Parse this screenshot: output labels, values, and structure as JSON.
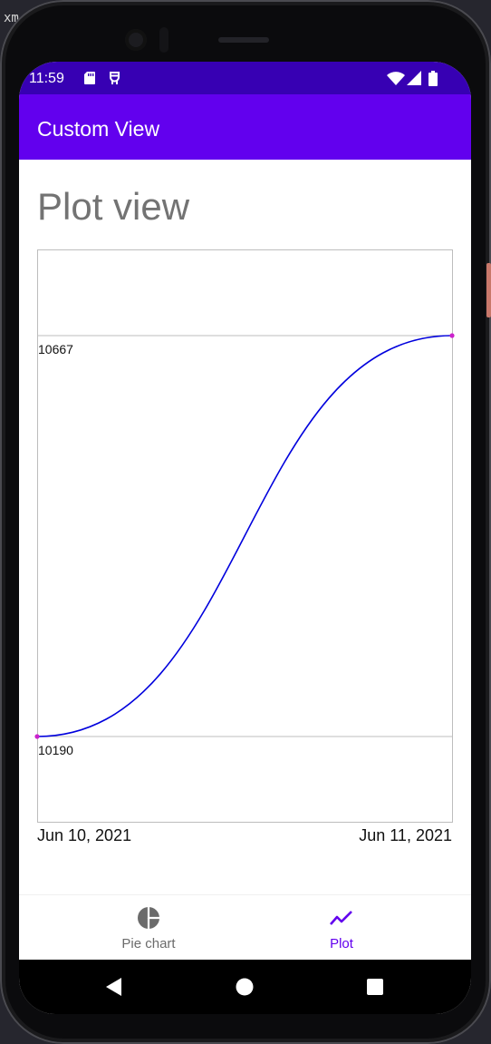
{
  "corner_label": "xm",
  "status_bar": {
    "time": "11:59",
    "icons": [
      "sd-card-icon",
      "debug-icon",
      "wifi-icon",
      "signal-icon",
      "battery-icon"
    ]
  },
  "app_bar": {
    "title": "Custom View"
  },
  "page": {
    "heading": "Plot view"
  },
  "chart_data": {
    "type": "line",
    "x": [
      "Jun 10, 2021",
      "Jun 11, 2021"
    ],
    "x_labels": [
      "Jun 10, 2021",
      "Jun 11, 2021"
    ],
    "series": [
      {
        "values": [
          10190,
          10667
        ]
      }
    ],
    "y_reference_lines": [
      10667,
      10190
    ],
    "y_labels": [
      "10667",
      "10190"
    ],
    "interpolation": "smooth",
    "grid": true,
    "colors": {
      "line": "#0000dd",
      "point": "#cc22cc",
      "grid": "#bdbdbd"
    }
  },
  "bottom_nav": {
    "items": [
      {
        "label": "Pie chart",
        "icon": "pie-chart-icon",
        "selected": false
      },
      {
        "label": "Plot",
        "icon": "trend-line-icon",
        "selected": true
      }
    ],
    "colors": {
      "selected": "#6200ee",
      "unselected": "#6b6b6b"
    }
  },
  "system_nav": {
    "buttons": [
      "back-icon",
      "home-icon",
      "recents-icon"
    ]
  }
}
